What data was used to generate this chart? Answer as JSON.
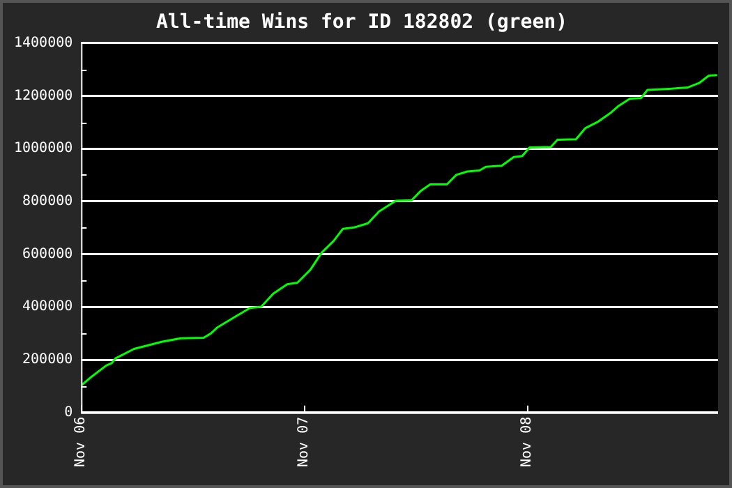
{
  "chart_data": {
    "type": "line",
    "title": "All-time Wins for ID 182802 (green)",
    "x": [
      "--11-06T00:06",
      "--11-06T01:00",
      "--11-06T02:42",
      "--11-06T03:18",
      "--11-06T03:42",
      "--11-06T05:42",
      "--11-06T08:42",
      "--11-06T10:42",
      "--11-06T13:12",
      "--11-06T14:00",
      "--11-06T14:42",
      "--11-06T16:42",
      "--11-06T18:12",
      "--11-06T19:24",
      "--11-06T20:42",
      "--11-06T22:12",
      "--11-06T23:18",
      "--11-07T00:42",
      "--11-07T01:54",
      "--11-07T03:12",
      "--11-07T04:12",
      "--11-07T05:24",
      "--11-07T06:54",
      "--11-07T08:06",
      "--11-07T09:54",
      "--11-07T11:36",
      "--11-07T12:36",
      "--11-07T13:36",
      "--11-07T15:24",
      "--11-07T16:24",
      "--11-07T17:36",
      "--11-07T18:54",
      "--11-07T19:36",
      "--11-07T21:18",
      "--11-07T22:36",
      "--11-07T23:30",
      "--11-08T00:18",
      "--11-08T02:36",
      "--11-08T03:18",
      "--11-08T05:18",
      "--11-08T06:18",
      "--11-08T07:36",
      "--11-08T09:06",
      "--11-08T09:48",
      "--11-08T11:06",
      "--11-08T12:18",
      "--11-08T13:00",
      "--11-08T15:18",
      "--11-08T17:18",
      "--11-08T18:36",
      "--11-08T19:36",
      "--11-08T20:30"
    ],
    "series": [
      {
        "color": "#00ff00",
        "values": [
          105000,
          132000,
          178000,
          187000,
          205000,
          241000,
          268000,
          281000,
          283000,
          300000,
          323000,
          365000,
          396000,
          401000,
          450000,
          486000,
          492000,
          541000,
          605000,
          650000,
          696000,
          701000,
          717000,
          762000,
          802000,
          804000,
          840000,
          864000,
          864000,
          900000,
          913000,
          917000,
          931000,
          935000,
          968000,
          971000,
          1004000,
          1006000,
          1033000,
          1035000,
          1077000,
          1100000,
          1137000,
          1159000,
          1189000,
          1191000,
          1222000,
          1226000,
          1231000,
          1249000,
          1276000,
          1278000
        ]
      }
    ],
    "xlim": [
      "--11-06T00:00",
      "--11-08T20:36"
    ],
    "xticks": [
      {
        "value": "--11-06",
        "label": "Nov 06"
      },
      {
        "value": "--11-07",
        "label": "Nov 07"
      },
      {
        "value": "--11-08",
        "label": "Nov 08"
      }
    ],
    "ylim": [
      0,
      1400000
    ],
    "yticks": [
      0,
      {
        "value": 100000,
        "label": null
      },
      200000,
      {
        "value": 300000,
        "label": null
      },
      400000,
      {
        "value": 500000,
        "label": null
      },
      600000,
      {
        "value": 700000,
        "label": null
      },
      800000,
      {
        "value": 900000,
        "label": null
      },
      1000000,
      {
        "value": 1100000,
        "label": null
      },
      1200000,
      {
        "value": 1300000,
        "label": null
      },
      1400000
    ],
    "grid": "y",
    "legend": false,
    "marker": "none",
    "line_style": "solid"
  }
}
